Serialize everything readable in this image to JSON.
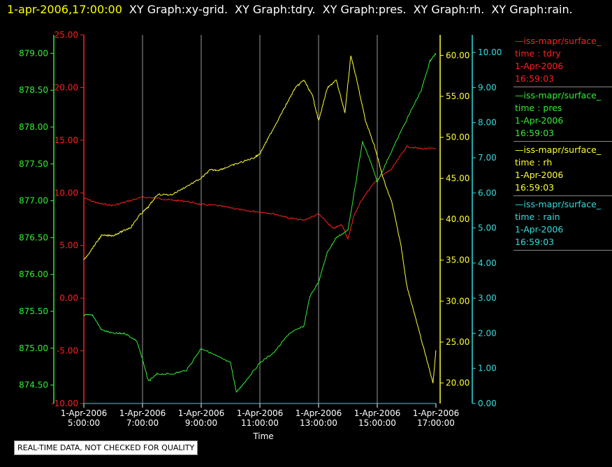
{
  "header": {
    "timestamp": "1-apr-2006,17:00:00",
    "graphs": [
      "XY Graph:xy-grid.",
      "XY Graph:tdry.",
      "XY Graph:pres.",
      "XY Graph:rh.",
      "XY Graph:rain."
    ]
  },
  "legend": [
    {
      "line": "—iss-mapr/surface_",
      "field": "time : tdry",
      "date": "1-Apr-2006",
      "time": "16:59:03",
      "color": "#ff2020"
    },
    {
      "line": "—iss-mapr/surface_",
      "field": "time : pres",
      "date": "1-Apr-2006",
      "time": "16:59:03",
      "color": "#33ee33"
    },
    {
      "line": "—iss-mapr/surface_",
      "field": "time : rh",
      "date": "1-Apr-2006",
      "time": "16:59:03",
      "color": "#ffff33"
    },
    {
      "line": "—iss-mapr/surface_",
      "field": "time : rain",
      "date": "1-Apr-2006",
      "time": "16:59:03",
      "color": "#33dddd"
    }
  ],
  "notice": "REAL-TIME DATA, NOT CHECKED FOR QUALITY",
  "chart_data": {
    "type": "line",
    "xlabel": "Time",
    "xlim": [
      5,
      17
    ],
    "x_ticks": [
      {
        "date": "1-Apr-2006",
        "time": "5:00:00"
      },
      {
        "date": "1-Apr-2006",
        "time": "7:00:00"
      },
      {
        "date": "1-Apr-2006",
        "time": "9:00:00"
      },
      {
        "date": "1-Apr-2006",
        "time": "11:00:00"
      },
      {
        "date": "1-Apr-2006",
        "time": "13:00:00"
      },
      {
        "date": "1-Apr-2006",
        "time": "15:00:00"
      },
      {
        "date": "1-Apr-2006",
        "time": "17:00:00"
      }
    ],
    "grid": "vertical",
    "axes": {
      "pres": {
        "range": [
          874.25,
          879.25
        ],
        "ticks": [
          "874.50",
          "875.00",
          "875.50",
          "876.00",
          "876.50",
          "877.00",
          "877.50",
          "878.00",
          "878.50",
          "879.00"
        ],
        "color": "#33ee33"
      },
      "tdry": {
        "range": [
          -10,
          25
        ],
        "ticks": [
          "-10.00",
          "-5.00",
          "0.00",
          "5.00",
          "10.00",
          "15.00",
          "20.00",
          "25.00"
        ],
        "color": "#ff2020"
      },
      "rh": {
        "range": [
          17.5,
          62.5
        ],
        "ticks": [
          "20.00",
          "25.00",
          "30.00",
          "35.00",
          "40.00",
          "45.00",
          "50.00",
          "55.00",
          "60.00"
        ],
        "color": "#ffff33"
      },
      "rain": {
        "range": [
          0,
          10.5
        ],
        "ticks": [
          "0.00",
          "1.00",
          "2.00",
          "3.00",
          "4.00",
          "5.00",
          "6.00",
          "7.00",
          "8.00",
          "9.00",
          "10.00"
        ],
        "color": "#33dddd"
      }
    },
    "series": [
      {
        "key": "tdry",
        "color": "#ff2020",
        "x": [
          5.0,
          5.5,
          6.0,
          6.5,
          7.0,
          7.5,
          8.0,
          8.5,
          9.0,
          9.5,
          10.0,
          10.5,
          11.0,
          11.5,
          12.0,
          12.5,
          13.0,
          13.5,
          13.8,
          14.0,
          14.2,
          14.5,
          15.0,
          15.5,
          16.0,
          16.5,
          17.0
        ],
        "y": [
          9.5,
          9.0,
          8.8,
          9.2,
          9.6,
          9.5,
          9.3,
          9.2,
          8.9,
          8.8,
          8.6,
          8.3,
          8.2,
          8.0,
          7.6,
          7.4,
          8.0,
          6.6,
          7.0,
          5.6,
          7.8,
          9.5,
          11.3,
          12.3,
          14.4,
          14.2,
          14.2
        ]
      },
      {
        "key": "pres",
        "color": "#33ee33",
        "x": [
          5.0,
          5.3,
          5.6,
          6.0,
          6.4,
          6.8,
          7.0,
          7.2,
          7.5,
          8.0,
          8.5,
          9.0,
          9.5,
          10.0,
          10.2,
          10.5,
          11.0,
          11.5,
          12.0,
          12.5,
          12.7,
          13.0,
          13.3,
          13.6,
          14.0,
          14.5,
          14.8,
          15.0,
          15.4,
          16.0,
          16.5,
          16.8,
          17.0
        ],
        "y": [
          875.45,
          875.45,
          875.25,
          875.2,
          875.2,
          875.1,
          874.85,
          874.55,
          874.65,
          874.65,
          874.7,
          875.0,
          874.9,
          874.8,
          874.4,
          874.55,
          874.8,
          874.95,
          875.2,
          875.3,
          875.7,
          875.9,
          876.3,
          876.5,
          876.6,
          877.8,
          877.5,
          877.25,
          877.6,
          878.1,
          878.5,
          878.9,
          879.0
        ]
      },
      {
        "key": "rh",
        "color": "#ffff33",
        "x": [
          5.0,
          5.3,
          5.6,
          6.0,
          6.3,
          6.6,
          6.9,
          7.2,
          7.5,
          8.0,
          8.5,
          9.0,
          9.3,
          9.6,
          10.0,
          10.4,
          10.8,
          11.0,
          11.3,
          11.6,
          11.9,
          12.2,
          12.5,
          12.8,
          13.0,
          13.3,
          13.6,
          13.9,
          14.1,
          14.3,
          14.6,
          14.9,
          15.2,
          15.5,
          15.8,
          16.0,
          16.3,
          16.6,
          16.9,
          17.0
        ],
        "y": [
          35.0,
          36.5,
          38.0,
          38.0,
          38.5,
          39.0,
          40.5,
          41.5,
          43.0,
          43.0,
          44.0,
          45.0,
          46.0,
          46.0,
          46.5,
          47.0,
          47.5,
          48.0,
          50.0,
          52.0,
          54.0,
          56.0,
          57.0,
          55.0,
          52.0,
          56.0,
          57.0,
          53.0,
          60.0,
          57.0,
          52.0,
          49.0,
          45.0,
          42.0,
          37.0,
          32.0,
          28.0,
          24.0,
          20.0,
          24.0
        ]
      },
      {
        "key": "rain",
        "color": "#33dddd",
        "x": [
          5.0,
          17.0
        ],
        "y": [
          0.0,
          0.0
        ]
      }
    ]
  }
}
